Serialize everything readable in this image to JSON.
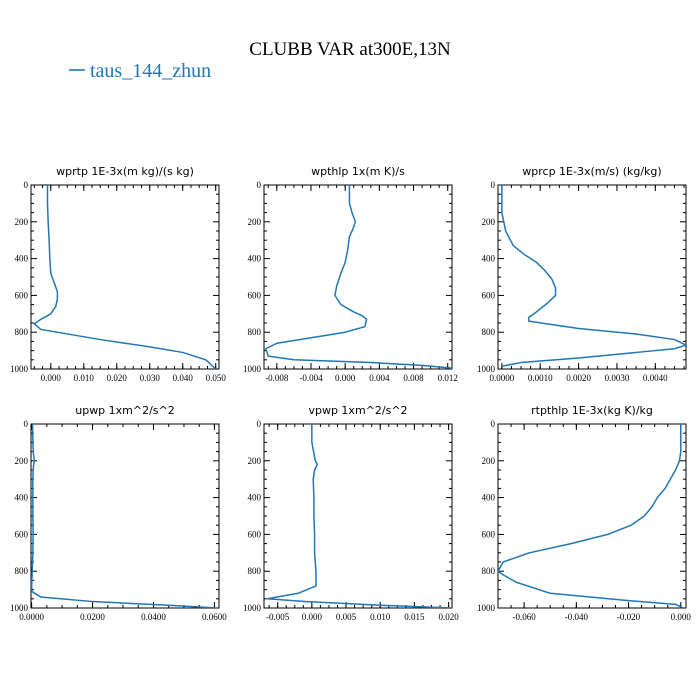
{
  "title": "CLUBB VAR at300E,13N",
  "legend": [
    {
      "label": "taus_144_zhun",
      "color": "#1f77b4"
    }
  ],
  "chart_data": [
    {
      "type": "line",
      "title": "wprtp  1E-3x(m kg)/(s kg)",
      "xlim": [
        -0.006,
        0.051
      ],
      "ylim": [
        1000,
        0
      ],
      "xticks": [
        0.0,
        0.01,
        0.02,
        0.03,
        0.04,
        0.05
      ],
      "xtick_labels": [
        "0.000",
        "0.010",
        "0.020",
        "0.030",
        "0.040",
        "0.050"
      ],
      "yticks": [
        0,
        200,
        400,
        600,
        800,
        1000
      ],
      "ytick_labels": [
        "0",
        "200",
        "400",
        "600",
        "800",
        "1000"
      ],
      "series": [
        {
          "color": "#1f77b4",
          "x": [
            -0.001,
            -0.001,
            -0.0008,
            -0.0005,
            -0.0003,
            0.0,
            0.001,
            0.002,
            0.002,
            0.0015,
            0.0,
            -0.003,
            -0.005,
            -0.003,
            0.015,
            0.03,
            0.04,
            0.047,
            0.05
          ],
          "y": [
            0,
            100,
            200,
            300,
            400,
            480,
            530,
            580,
            620,
            660,
            700,
            730,
            755,
            785,
            840,
            880,
            910,
            950,
            1000
          ]
        }
      ]
    },
    {
      "type": "line",
      "title": "wpthlp  1x(m K)/s",
      "xlim": [
        -0.0095,
        0.0125
      ],
      "ylim": [
        1000,
        0
      ],
      "xticks": [
        -0.008,
        -0.004,
        0.0,
        0.004,
        0.008,
        0.012
      ],
      "xtick_labels": [
        "-0.008",
        "-0.004",
        "0.000",
        "0.004",
        "0.008",
        "0.012"
      ],
      "yticks": [
        0,
        200,
        400,
        600,
        800,
        1000
      ],
      "ytick_labels": [
        "0",
        "200",
        "400",
        "600",
        "800",
        "1000"
      ],
      "series": [
        {
          "color": "#1f77b4",
          "x": [
            0.0005,
            0.0005,
            0.0008,
            0.0012,
            0.0009,
            0.0005,
            0.0003,
            0.0,
            -0.0005,
            -0.001,
            -0.0012,
            -0.0005,
            0.001,
            0.002,
            0.0025,
            0.0023,
            0.0,
            -0.004,
            -0.008,
            -0.0093,
            -0.009,
            -0.006,
            0.003,
            0.009,
            0.0125
          ],
          "y": [
            0,
            100,
            150,
            200,
            240,
            280,
            350,
            420,
            480,
            550,
            600,
            650,
            690,
            710,
            730,
            770,
            800,
            830,
            860,
            890,
            930,
            950,
            965,
            980,
            995
          ]
        }
      ]
    },
    {
      "type": "line",
      "title": "wprcp  1E-3x(m/s) (kg/kg)",
      "xlim": [
        -0.0001,
        0.0048
      ],
      "ylim": [
        1000,
        0
      ],
      "xticks": [
        0.0,
        0.001,
        0.002,
        0.003,
        0.004
      ],
      "xtick_labels": [
        "0.0000",
        "0.0010",
        "0.0020",
        "0.0030",
        "0.0040"
      ],
      "yticks": [
        0,
        200,
        400,
        600,
        800,
        1000
      ],
      "ytick_labels": [
        "0",
        "200",
        "400",
        "600",
        "800",
        "1000"
      ],
      "series": [
        {
          "color": "#1f77b4",
          "x": [
            0.0,
            0.0,
            0.0001,
            0.0003,
            0.0006,
            0.0009,
            0.0011,
            0.0013,
            0.0014,
            0.0014,
            0.0012,
            0.0009,
            0.0007,
            0.0007,
            0.002,
            0.0035,
            0.0045,
            0.0048,
            0.0045,
            0.0035,
            0.002,
            0.0005,
            0.0
          ],
          "y": [
            0,
            150,
            250,
            330,
            380,
            420,
            460,
            510,
            560,
            600,
            640,
            690,
            720,
            740,
            780,
            810,
            840,
            870,
            890,
            910,
            940,
            965,
            985
          ]
        }
      ]
    },
    {
      "type": "line",
      "title": "upwp  1xm^2/s^2",
      "xlim": [
        -0.0002,
        0.0615
      ],
      "ylim": [
        1000,
        0
      ],
      "xticks": [
        0.0,
        0.02,
        0.04,
        0.06
      ],
      "xtick_labels": [
        "0.0000",
        "0.0200",
        "0.0400",
        "0.0600"
      ],
      "yticks": [
        0,
        200,
        400,
        600,
        800,
        1000
      ],
      "ytick_labels": [
        "0",
        "200",
        "400",
        "600",
        "800",
        "1000"
      ],
      "series": [
        {
          "color": "#1f77b4",
          "x": [
            0.0003,
            0.0004,
            0.0006,
            0.0009,
            0.0006,
            0.0004,
            0.0004,
            0.0004,
            0.0005,
            0.0004,
            0.0002,
            0.0,
            0.0001,
            0.003,
            0.02,
            0.045,
            0.061
          ],
          "y": [
            0,
            100,
            160,
            200,
            230,
            300,
            400,
            500,
            600,
            700,
            800,
            880,
            910,
            940,
            965,
            985,
            1000
          ]
        }
      ]
    },
    {
      "type": "line",
      "title": "vpwp  1xm^2/s^2",
      "xlim": [
        -0.007,
        0.0205
      ],
      "ylim": [
        1000,
        0
      ],
      "xticks": [
        -0.005,
        0.0,
        0.005,
        0.01,
        0.015,
        0.02
      ],
      "xtick_labels": [
        "-0.005",
        "0.000",
        "0.005",
        "0.010",
        "0.015",
        "0.020"
      ],
      "yticks": [
        0,
        200,
        400,
        600,
        800,
        1000
      ],
      "ytick_labels": [
        "0",
        "200",
        "400",
        "600",
        "800",
        "1000"
      ],
      "series": [
        {
          "color": "#1f77b4",
          "x": [
            0.0,
            0.0,
            0.0003,
            0.0005,
            0.0008,
            0.0004,
            0.0002,
            0.0003,
            0.0003,
            0.0004,
            0.0004,
            0.0006,
            0.0006,
            -0.002,
            -0.0065,
            -0.001,
            0.01,
            0.0205
          ],
          "y": [
            0,
            100,
            160,
            200,
            220,
            250,
            300,
            400,
            500,
            600,
            700,
            800,
            880,
            920,
            950,
            965,
            985,
            1000
          ]
        }
      ]
    },
    {
      "type": "line",
      "title": "rtpthlp  1E-3x(kg K)/kg",
      "xlim": [
        -0.07,
        0.002
      ],
      "ylim": [
        1000,
        0
      ],
      "xticks": [
        -0.06,
        -0.04,
        -0.02,
        0.0
      ],
      "xtick_labels": [
        "-0.060",
        "-0.040",
        "-0.020",
        "0.000"
      ],
      "yticks": [
        0,
        200,
        400,
        600,
        800,
        1000
      ],
      "ytick_labels": [
        "0",
        "200",
        "400",
        "600",
        "800",
        "1000"
      ],
      "series": [
        {
          "color": "#1f77b4",
          "x": [
            0.0,
            0.0,
            -0.0005,
            -0.002,
            -0.004,
            -0.006,
            -0.009,
            -0.011,
            -0.014,
            -0.019,
            -0.028,
            -0.042,
            -0.058,
            -0.068,
            -0.07,
            -0.068,
            -0.063,
            -0.05,
            -0.02,
            -0.002,
            0.001
          ],
          "y": [
            0,
            150,
            200,
            250,
            300,
            350,
            400,
            450,
            500,
            550,
            600,
            650,
            700,
            750,
            800,
            820,
            860,
            920,
            960,
            980,
            1000
          ]
        }
      ]
    }
  ]
}
